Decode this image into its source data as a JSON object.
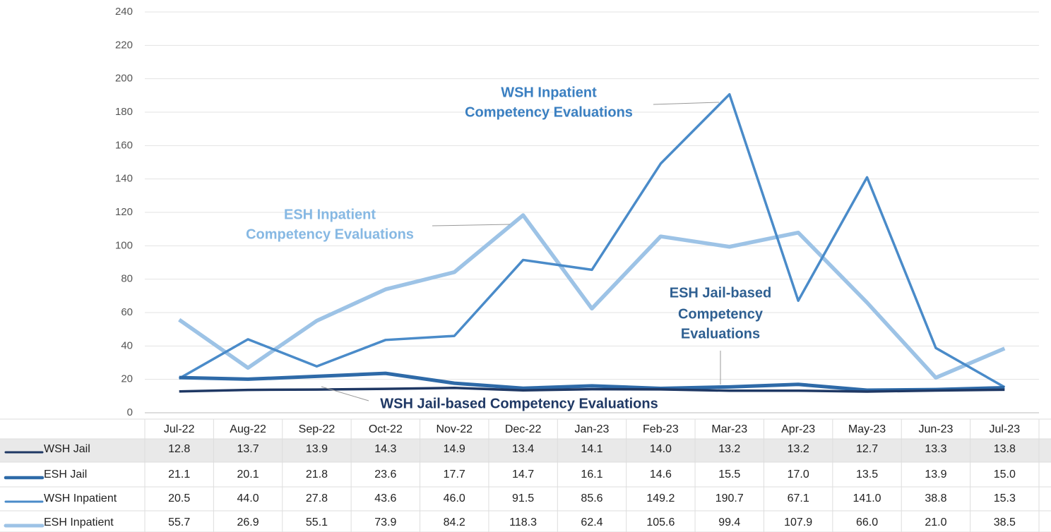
{
  "chart_data": {
    "type": "line",
    "categories": [
      "Jul-22",
      "Aug-22",
      "Sep-22",
      "Oct-22",
      "Nov-22",
      "Dec-22",
      "Jan-23",
      "Feb-23",
      "Mar-23",
      "Apr-23",
      "May-23",
      "Jun-23",
      "Jul-23"
    ],
    "ylim": [
      0,
      240
    ],
    "yticks": [
      0,
      20,
      40,
      60,
      80,
      100,
      120,
      140,
      160,
      180,
      200,
      220,
      240
    ],
    "grid": true,
    "series": [
      {
        "name": "WSH Jail",
        "color": "#1f3864",
        "values": [
          12.8,
          13.7,
          13.9,
          14.3,
          14.9,
          13.4,
          14.1,
          14.0,
          13.2,
          13.2,
          12.7,
          13.3,
          13.8
        ],
        "value_labels": [
          "12.8",
          "13.7",
          "13.9",
          "14.3",
          "14.9",
          "13.4",
          "14.1",
          "14.0",
          "13.2",
          "13.2",
          "12.7",
          "13.3",
          "13.8"
        ]
      },
      {
        "name": "ESH Jail",
        "color": "#2e6aa8",
        "values": [
          21.1,
          20.1,
          21.8,
          23.6,
          17.7,
          14.7,
          16.1,
          14.6,
          15.5,
          17.0,
          13.5,
          13.9,
          15.0
        ],
        "value_labels": [
          "21.1",
          "20.1",
          "21.8",
          "23.6",
          "17.7",
          "14.7",
          "16.1",
          "14.6",
          "15.5",
          "17.0",
          "13.5",
          "13.9",
          "15.0"
        ]
      },
      {
        "name": "WSH Inpatient",
        "color": "#4a8bc9",
        "values": [
          20.5,
          44.0,
          27.8,
          43.6,
          46.0,
          91.5,
          85.6,
          149.2,
          190.7,
          67.1,
          141.0,
          38.8,
          15.3
        ],
        "value_labels": [
          "20.5",
          "44.0",
          "27.8",
          "43.6",
          "46.0",
          "91.5",
          "85.6",
          "149.2",
          "190.7",
          "67.1",
          "141.0",
          "38.8",
          "15.3"
        ]
      },
      {
        "name": "ESH Inpatient",
        "color": "#9dc3e6",
        "values": [
          55.7,
          26.9,
          55.1,
          73.9,
          84.2,
          118.3,
          62.4,
          105.6,
          99.4,
          107.9,
          66.0,
          21.0,
          38.5
        ],
        "value_labels": [
          "55.7",
          "26.9",
          "55.1",
          "73.9",
          "84.2",
          "118.3",
          "62.4",
          "105.6",
          "99.4",
          "107.9",
          "66.0",
          "21.0",
          "38.5"
        ]
      }
    ],
    "annotations": [
      {
        "lines": [
          "WSH Inpatient",
          "Competency Evaluations"
        ],
        "color": "#3a7fc1"
      },
      {
        "lines": [
          "ESH Inpatient",
          "Competency Evaluations"
        ],
        "color": "#86b8e3"
      },
      {
        "lines": [
          "ESH Jail-based",
          "Competency",
          "Evaluations"
        ],
        "color": "#2e5f91"
      },
      {
        "lines": [
          "WSH Jail-based Competency Evaluations"
        ],
        "color": "#1f3864"
      }
    ]
  }
}
